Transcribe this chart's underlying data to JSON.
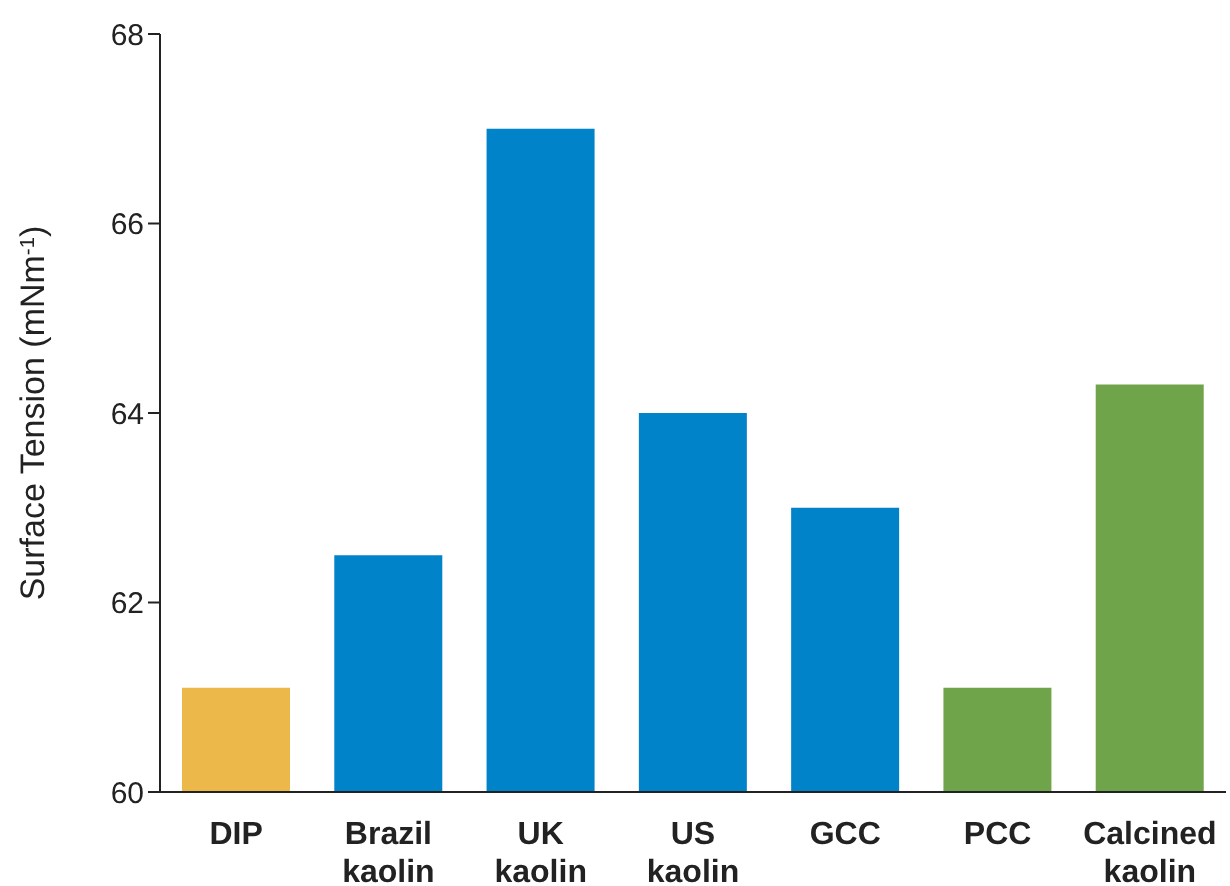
{
  "chart_data": {
    "type": "bar",
    "ylabel": "Surface Tension (mNm$^{-1}$)",
    "categories": [
      "DIP",
      "Brazil kaolin",
      "UK kaolin",
      "US kaolin",
      "GCC",
      "PCC",
      "Calcined kaolin"
    ],
    "values": [
      61.1,
      62.5,
      67.0,
      64.0,
      63.0,
      61.1,
      64.3
    ],
    "colors": [
      "#ecb84a",
      "#0083c9",
      "#0083c9",
      "#0083c9",
      "#0083c9",
      "#70a44a",
      "#70a44a"
    ],
    "ylim": [
      60,
      68
    ],
    "yticks": [
      60,
      62,
      64,
      66,
      68
    ],
    "grid": false
  }
}
